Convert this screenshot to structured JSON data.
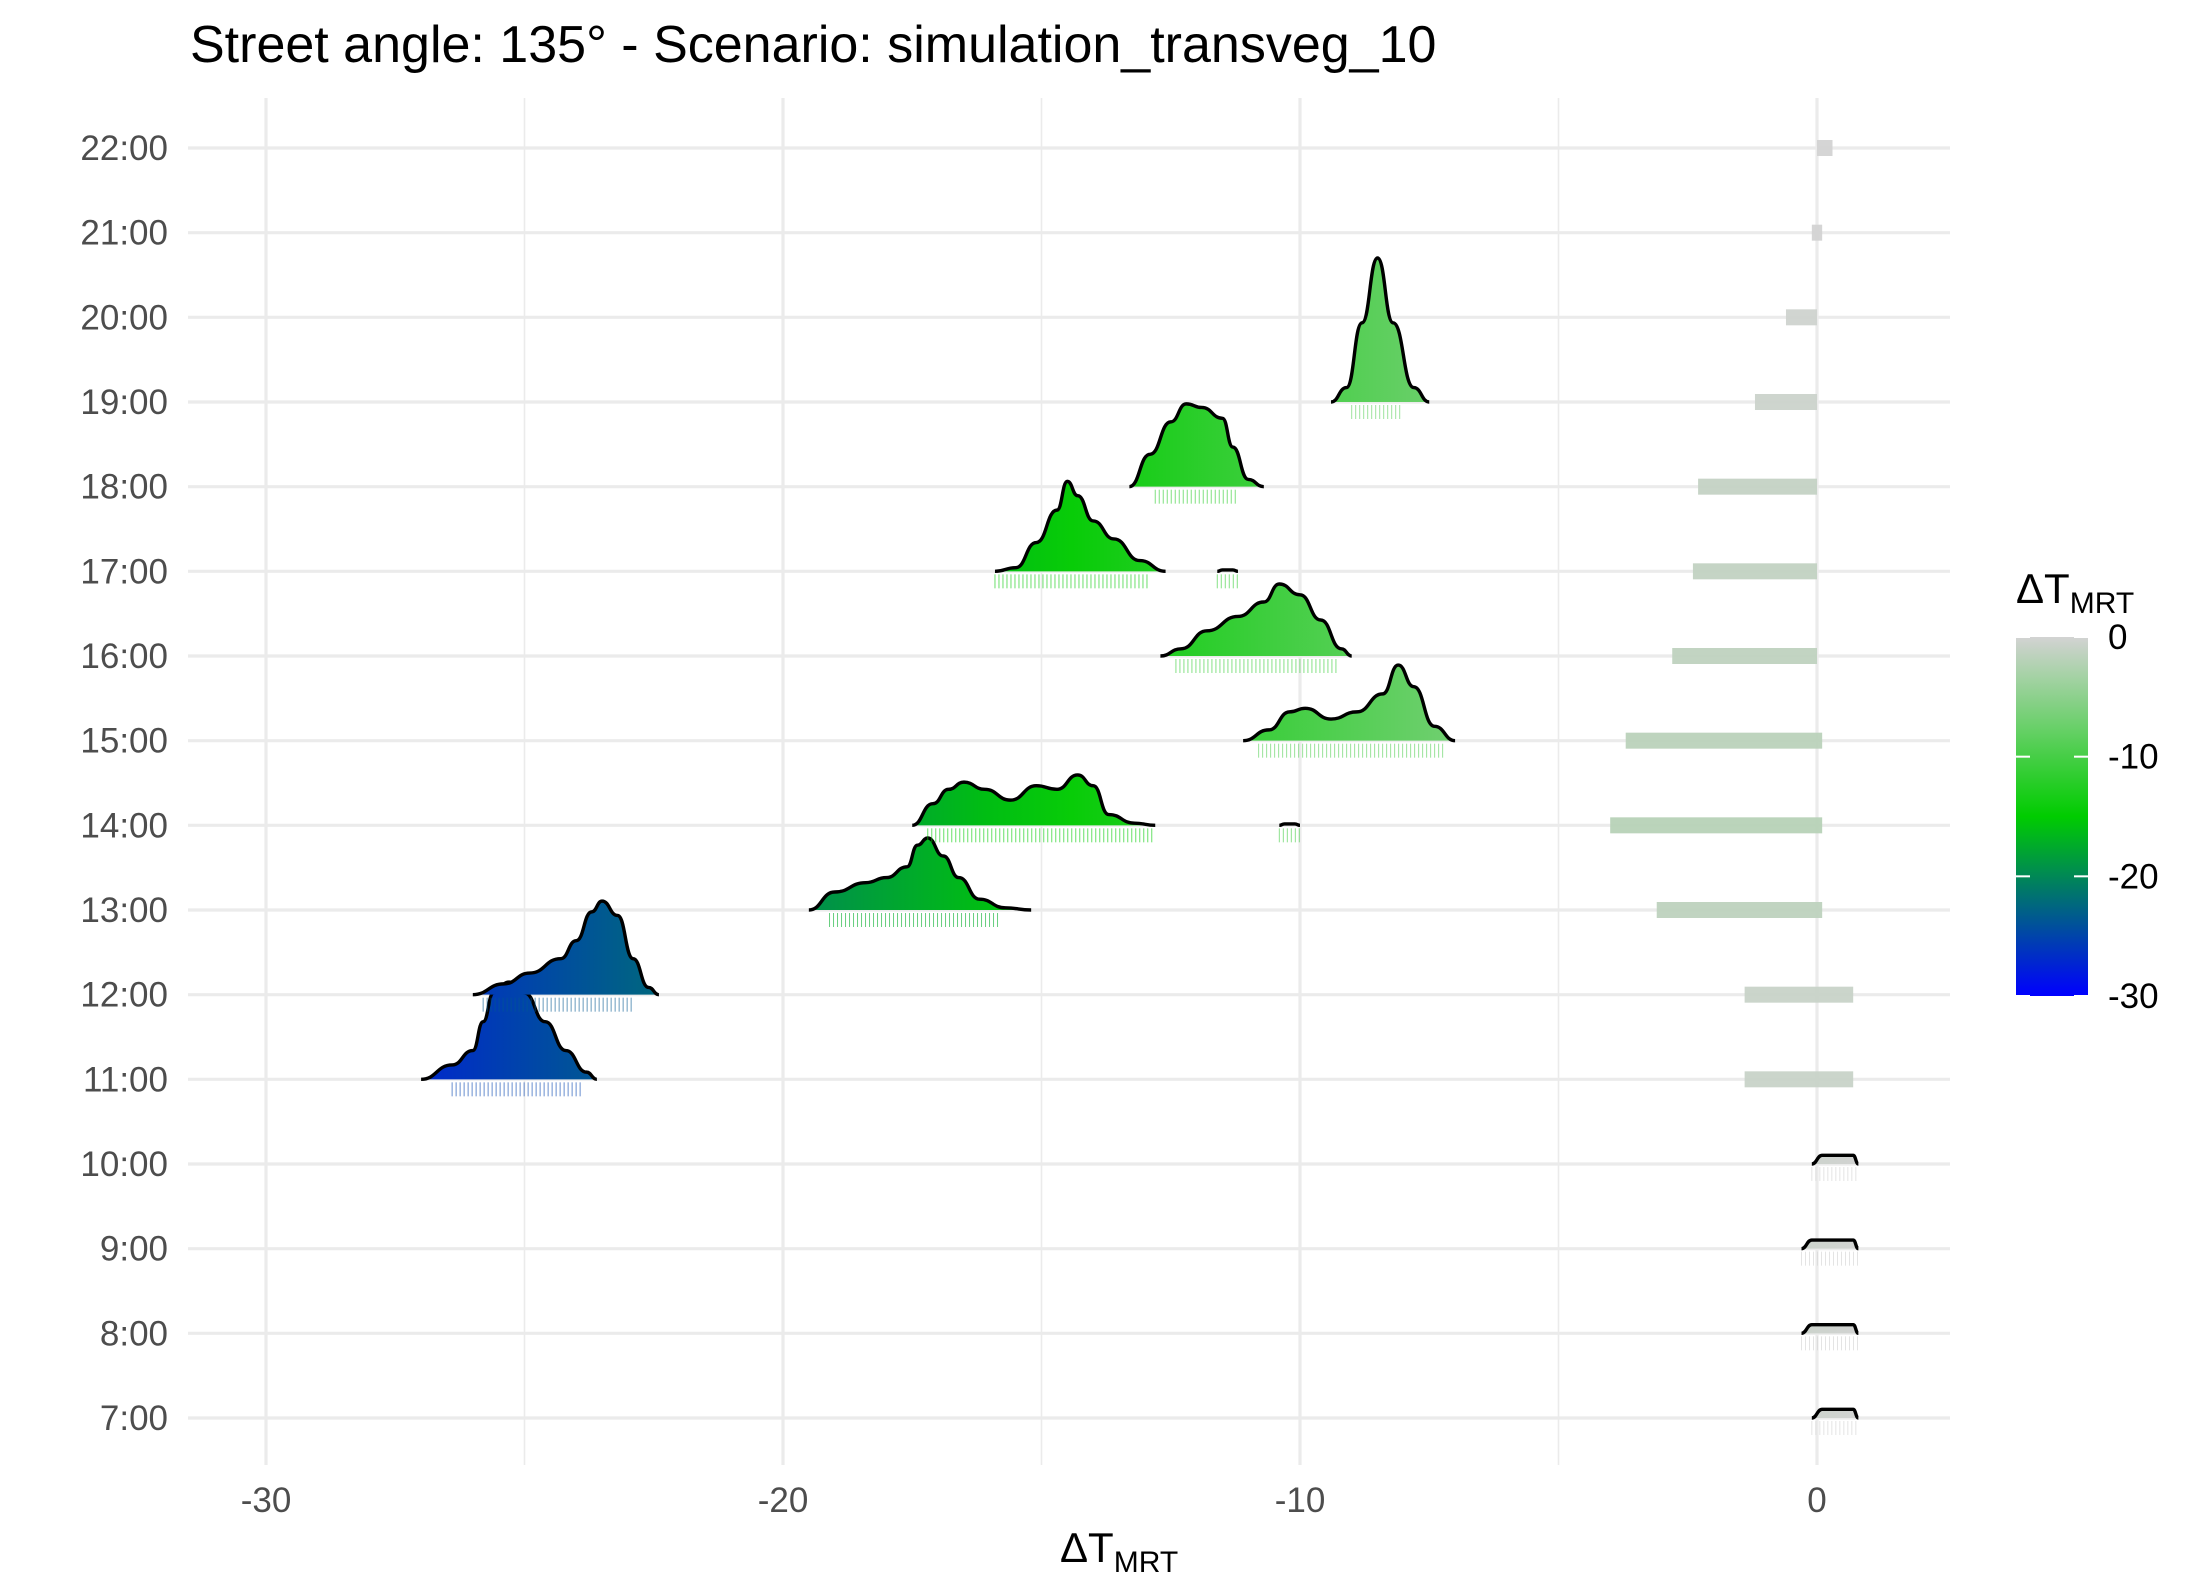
{
  "chart_data": {
    "type": "ridgeline",
    "title": "Street angle: 135° - Scenario: simulation_transveg_10",
    "xlabel": {
      "base": "ΔT",
      "subscript": "MRT"
    },
    "ylabel": "",
    "xlim": [
      -31.5,
      2.7
    ],
    "x_ticks": [
      -30,
      -20,
      -10,
      0
    ],
    "x_tick_labels": [
      "-30",
      "-20",
      "-10",
      "0"
    ],
    "y_categories": [
      "7:00",
      "8:00",
      "9:00",
      "10:00",
      "11:00",
      "12:00",
      "13:00",
      "14:00",
      "15:00",
      "16:00",
      "17:00",
      "18:00",
      "19:00",
      "20:00",
      "21:00",
      "22:00"
    ],
    "grid": true,
    "legend": {
      "title_base": "ΔT",
      "title_subscript": "MRT",
      "placement": "right",
      "range": [
        -30,
        0
      ],
      "ticks": [
        0,
        -10,
        -20,
        -30
      ],
      "tick_labels": [
        "0",
        "-10",
        "-20",
        "-30"
      ],
      "color_stops": [
        {
          "value": -30,
          "color": "#0000ff"
        },
        {
          "value": -15,
          "color": "#00cc00"
        },
        {
          "value": 0,
          "color": "#d3d3d3"
        }
      ]
    },
    "series": [
      {
        "time": "7:00",
        "mean": 0.3,
        "points": [
          [
            -0.1,
            0
          ],
          [
            0.1,
            0.12
          ],
          [
            0.7,
            0.12
          ],
          [
            0.8,
            0
          ]
        ],
        "rug": [
          -0.1,
          0.8
        ]
      },
      {
        "time": "8:00",
        "mean": 0.3,
        "points": [
          [
            -0.3,
            0
          ],
          [
            -0.1,
            0.12
          ],
          [
            0.7,
            0.12
          ],
          [
            0.8,
            0
          ]
        ],
        "rug": [
          -0.3,
          0.8
        ]
      },
      {
        "time": "9:00",
        "mean": 0.3,
        "points": [
          [
            -0.3,
            0
          ],
          [
            -0.1,
            0.12
          ],
          [
            0.7,
            0.12
          ],
          [
            0.8,
            0
          ]
        ],
        "rug": [
          -0.3,
          0.8
        ]
      },
      {
        "time": "10:00",
        "mean": 0.3,
        "points": [
          [
            -0.1,
            0
          ],
          [
            0.1,
            0.12
          ],
          [
            0.7,
            0.12
          ],
          [
            0.8,
            0
          ]
        ],
        "rug": [
          -0.1,
          0.8
        ]
      },
      {
        "time": "11:00",
        "mean": -25.3,
        "points": [
          [
            -27,
            0
          ],
          [
            -26.4,
            0.2
          ],
          [
            -26,
            0.4
          ],
          [
            -25.8,
            0.8
          ],
          [
            -25.6,
            1.2
          ],
          [
            -25.3,
            1.35
          ],
          [
            -25,
            1.2
          ],
          [
            -24.6,
            0.8
          ],
          [
            -24.2,
            0.4
          ],
          [
            -23.8,
            0.1
          ],
          [
            -23.6,
            0
          ]
        ],
        "rug": [
          -26.4,
          -23.9
        ]
      },
      {
        "time": "11:00 bar",
        "mean": -0.8,
        "points": [
          [
            -1.4,
            0
          ],
          [
            -1.3,
            0.1
          ],
          [
            0.6,
            0.1
          ],
          [
            0.7,
            0
          ]
        ],
        "rug": [
          -1.4,
          0.7
        ]
      },
      {
        "time": "12:00",
        "mean": -23.5,
        "points": [
          [
            -26,
            0
          ],
          [
            -25.4,
            0.15
          ],
          [
            -24.9,
            0.3
          ],
          [
            -24.3,
            0.5
          ],
          [
            -24,
            0.75
          ],
          [
            -23.7,
            1.15
          ],
          [
            -23.5,
            1.3
          ],
          [
            -23.2,
            1.1
          ],
          [
            -22.9,
            0.5
          ],
          [
            -22.6,
            0.1
          ],
          [
            -22.4,
            0
          ]
        ],
        "rug": [
          -25.8,
          -22.9
        ]
      },
      {
        "time": "12:00 bar",
        "mean": -0.8,
        "points": [
          [
            -1.4,
            0
          ],
          [
            -1.3,
            0.1
          ],
          [
            0.6,
            0.1
          ],
          [
            0.7,
            0
          ]
        ],
        "rug": [
          -1.4,
          0.7
        ]
      },
      {
        "time": "13:00",
        "mean": -17.3,
        "points": [
          [
            -19.5,
            0
          ],
          [
            -19,
            0.25
          ],
          [
            -18.4,
            0.38
          ],
          [
            -18,
            0.45
          ],
          [
            -17.6,
            0.6
          ],
          [
            -17.4,
            0.9
          ],
          [
            -17.2,
            1.0
          ],
          [
            -16.9,
            0.75
          ],
          [
            -16.6,
            0.45
          ],
          [
            -16.2,
            0.15
          ],
          [
            -15.7,
            0.03
          ],
          [
            -15.2,
            0
          ]
        ],
        "rug": [
          -19.1,
          -15.8
        ]
      },
      {
        "time": "13:00 bar",
        "mean": -1.5,
        "points": [
          [
            -3.1,
            0
          ],
          [
            -3.0,
            0.1
          ],
          [
            0.0,
            0.1
          ],
          [
            0.1,
            0
          ]
        ],
        "rug": [
          -3.1,
          0.1
        ]
      },
      {
        "time": "14:00",
        "mean": -14.8,
        "points": [
          [
            -17.5,
            0
          ],
          [
            -17.1,
            0.3
          ],
          [
            -16.8,
            0.5
          ],
          [
            -16.5,
            0.6
          ],
          [
            -16.1,
            0.5
          ],
          [
            -15.6,
            0.35
          ],
          [
            -15.1,
            0.55
          ],
          [
            -14.7,
            0.5
          ],
          [
            -14.3,
            0.7
          ],
          [
            -14.0,
            0.55
          ],
          [
            -13.7,
            0.15
          ],
          [
            -13.2,
            0.03
          ],
          [
            -12.8,
            0
          ]
        ],
        "rug": [
          -17.2,
          -12.8
        ]
      },
      {
        "time": "14:00 short",
        "mean": -10.2,
        "points": [
          [
            -10.4,
            0
          ],
          [
            -10.3,
            0.02
          ],
          [
            -10.1,
            0.02
          ],
          [
            -10.0,
            0
          ]
        ],
        "rug": [
          -10.4,
          -10.0
        ]
      },
      {
        "time": "14:00 bar",
        "mean": -2.0,
        "points": [
          [
            -4.0,
            0
          ],
          [
            -3.9,
            0.1
          ],
          [
            0.0,
            0.1
          ],
          [
            0.1,
            0
          ]
        ],
        "rug": [
          -4.0,
          0.0
        ]
      },
      {
        "time": "15:00",
        "mean": -9.0,
        "points": [
          [
            -11.1,
            0
          ],
          [
            -10.6,
            0.15
          ],
          [
            -10.2,
            0.4
          ],
          [
            -9.9,
            0.45
          ],
          [
            -9.4,
            0.3
          ],
          [
            -8.9,
            0.4
          ],
          [
            -8.4,
            0.65
          ],
          [
            -8.1,
            1.05
          ],
          [
            -7.8,
            0.75
          ],
          [
            -7.4,
            0.2
          ],
          [
            -7.0,
            0
          ]
        ],
        "rug": [
          -10.8,
          -7.2
        ]
      },
      {
        "time": "15:00 bar",
        "mean": -1.8,
        "points": [
          [
            -3.7,
            0
          ],
          [
            -3.6,
            0.1
          ],
          [
            0.0,
            0.1
          ],
          [
            0.1,
            0
          ]
        ],
        "rug": [
          -3.7,
          0.1
        ]
      },
      {
        "time": "16:00",
        "mean": -11.0,
        "points": [
          [
            -12.7,
            0
          ],
          [
            -12.3,
            0.1
          ],
          [
            -11.8,
            0.35
          ],
          [
            -11.2,
            0.55
          ],
          [
            -10.7,
            0.75
          ],
          [
            -10.4,
            1.0
          ],
          [
            -10.0,
            0.85
          ],
          [
            -9.6,
            0.5
          ],
          [
            -9.2,
            0.1
          ],
          [
            -9.0,
            0
          ]
        ],
        "rug": [
          -12.4,
          -9.3
        ]
      },
      {
        "time": "16:00 bar",
        "mean": -1.4,
        "points": [
          [
            -2.8,
            0
          ],
          [
            -2.7,
            0.1
          ],
          [
            -0.1,
            0.1
          ],
          [
            0,
            0
          ]
        ],
        "rug": [
          -2.8,
          0
        ]
      },
      {
        "time": "17:00",
        "mean": -14.5,
        "points": [
          [
            -15.9,
            0
          ],
          [
            -15.5,
            0.05
          ],
          [
            -15.1,
            0.4
          ],
          [
            -14.7,
            0.85
          ],
          [
            -14.5,
            1.25
          ],
          [
            -14.3,
            1.05
          ],
          [
            -14.0,
            0.7
          ],
          [
            -13.6,
            0.45
          ],
          [
            -13.1,
            0.15
          ],
          [
            -12.6,
            0
          ]
        ],
        "rug": [
          -15.9,
          -12.9
        ]
      },
      {
        "time": "17:00 short",
        "mean": -11.4,
        "points": [
          [
            -11.6,
            0
          ],
          [
            -11.5,
            0.02
          ],
          [
            -11.3,
            0.02
          ],
          [
            -11.2,
            0
          ]
        ],
        "rug": [
          -11.6,
          -11.2
        ]
      },
      {
        "time": "17:00 bar",
        "mean": -1.2,
        "points": [
          [
            -2.4,
            0
          ],
          [
            -2.3,
            0.1
          ],
          [
            -0.1,
            0.1
          ],
          [
            0,
            0
          ]
        ],
        "rug": [
          -2.4,
          0
        ]
      },
      {
        "time": "18:00",
        "mean": -12.0,
        "points": [
          [
            -13.3,
            0
          ],
          [
            -12.9,
            0.45
          ],
          [
            -12.5,
            0.9
          ],
          [
            -12.2,
            1.15
          ],
          [
            -11.9,
            1.1
          ],
          [
            -11.5,
            0.95
          ],
          [
            -11.3,
            0.55
          ],
          [
            -11.0,
            0.1
          ],
          [
            -10.7,
            0
          ]
        ],
        "rug": [
          -12.8,
          -11.2
        ]
      },
      {
        "time": "18:00 bar",
        "mean": -1.1,
        "points": [
          [
            -2.3,
            0
          ],
          [
            -2.2,
            0.1
          ],
          [
            -0.1,
            0.1
          ],
          [
            0,
            0
          ]
        ],
        "rug": [
          -2.3,
          0
        ]
      },
      {
        "time": "19:00",
        "mean": -8.5,
        "points": [
          [
            -9.4,
            0
          ],
          [
            -9.1,
            0.2
          ],
          [
            -8.8,
            1.1
          ],
          [
            -8.5,
            2.0
          ],
          [
            -8.2,
            1.1
          ],
          [
            -7.8,
            0.2
          ],
          [
            -7.5,
            0
          ]
        ],
        "rug": [
          -9.0,
          -8.0
        ]
      },
      {
        "time": "19:00 bar",
        "mean": -0.6,
        "points": [
          [
            -1.2,
            0
          ],
          [
            -1.1,
            0.1
          ],
          [
            -0.1,
            0.1
          ],
          [
            0,
            0
          ]
        ],
        "rug": [
          -1.2,
          0
        ]
      },
      {
        "time": "20:00 bar",
        "mean": -0.3,
        "points": [
          [
            -0.6,
            0
          ],
          [
            -0.5,
            0.1
          ],
          [
            -0.1,
            0.1
          ],
          [
            0,
            0
          ]
        ],
        "rug": [
          -0.6,
          0
        ]
      },
      {
        "time": "21:00 bar",
        "mean": 0.0,
        "points": [
          [
            -0.1,
            0
          ],
          [
            -0.05,
            0.1
          ],
          [
            0.1,
            0.1
          ],
          [
            0.1,
            0
          ]
        ],
        "rug": [
          -0.1,
          0.1
        ]
      },
      {
        "time": "22:00 bar",
        "mean": 0.3,
        "points": [
          [
            0.0,
            0
          ],
          [
            0.05,
            0.12
          ],
          [
            0.3,
            0.12
          ],
          [
            0.3,
            0
          ]
        ],
        "rug": [
          0.0,
          0.3
        ]
      }
    ]
  }
}
